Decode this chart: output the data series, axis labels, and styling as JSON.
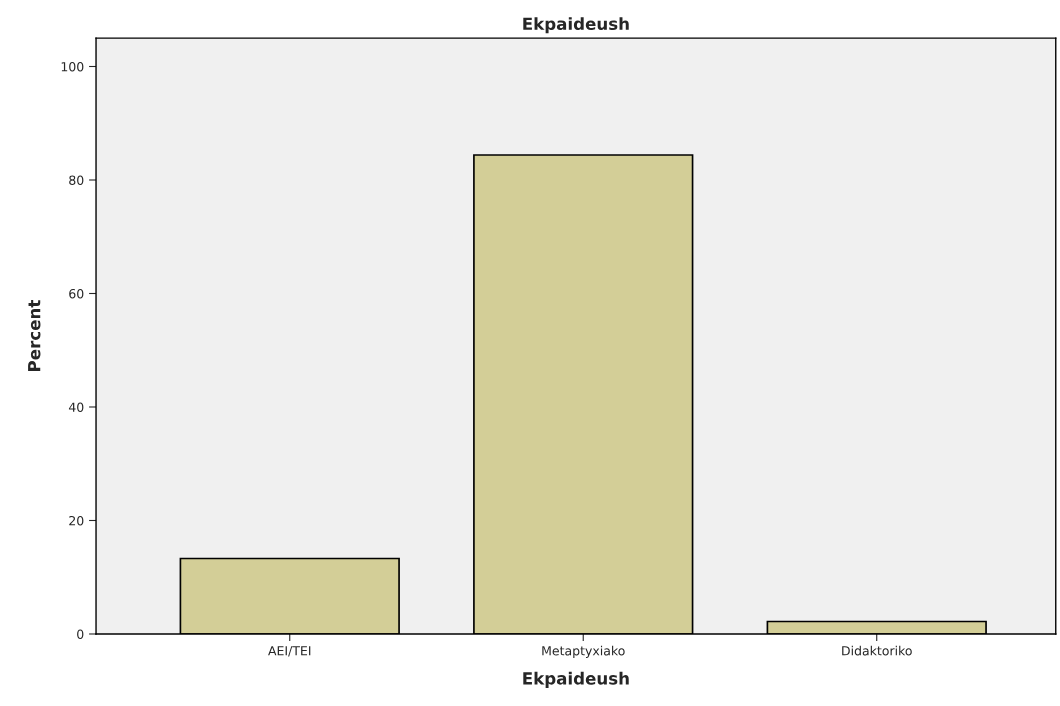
{
  "chart_data": {
    "type": "bar",
    "title": "Ekpaideush",
    "xlabel": "Ekpaideush",
    "ylabel": "Percent",
    "categories": [
      "AEI/TEI",
      "Metaptyxiako",
      "Didaktoriko"
    ],
    "values": [
      13.3,
      84.4,
      2.2
    ],
    "color": "#d3ce97",
    "ylim": [
      0,
      105
    ],
    "yticks": [
      0,
      20,
      40,
      60,
      80,
      100
    ],
    "grid": false,
    "legend": false
  }
}
